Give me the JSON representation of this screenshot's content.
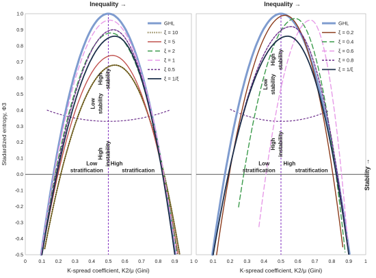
{
  "titles": {
    "left_top": "Inequality →",
    "right_top": "Inequality →",
    "right_side": "Stability →"
  },
  "chart_data": [
    {
      "type": "line",
      "panel": "left",
      "xlabel": "K-spread coefficient, K2/μ (Gini)",
      "ylabel": "Stadardized entropy, Φ3",
      "xlim": [
        0,
        1
      ],
      "ylim": [
        -0.5,
        1.0
      ],
      "xticks": [
        "0",
        "0.1",
        "0.2",
        "0.3",
        "0.4",
        "0.5",
        "0.6",
        "0.7",
        "0.8",
        "0.9",
        "1"
      ],
      "yticks": [
        "-0.5",
        "-0.4",
        "-0.3",
        "-0.2",
        "-0.1",
        "0.0",
        "0.1",
        "0.2",
        "0.3",
        "0.4",
        "0.5",
        "0.6",
        "0.7",
        "0.8",
        "0.9",
        "1.0"
      ],
      "grid": false,
      "legend_position": "top-right",
      "vline_x": 0.5,
      "annotations": [
        {
          "text": "High",
          "x": 0.5,
          "y": 0.62
        },
        {
          "text": "stability",
          "x": 0.5,
          "y": 0.62
        },
        {
          "text": "Low",
          "x": 0.46,
          "y": 0.5
        },
        {
          "text": "stability",
          "x": 0.46,
          "y": 0.5
        },
        {
          "text": "High",
          "x": 0.46,
          "y": 0.12
        },
        {
          "text": "instability",
          "x": 0.46,
          "y": 0.12
        },
        {
          "text": "Low",
          "x": 0.37,
          "y": 0.04
        },
        {
          "text": "stratification",
          "x": 0.37,
          "y": 0.04
        },
        {
          "text": "High",
          "x": 0.6,
          "y": 0.04
        },
        {
          "text": "stratification",
          "x": 0.6,
          "y": 0.04
        }
      ],
      "series": [
        {
          "name": "GHL",
          "color": "#7f9ccf",
          "dash": "solid",
          "width": 3,
          "peak": 1.0,
          "a": 0.095,
          "b": 0.905,
          "skew": 0
        },
        {
          "name": "ξ = 10",
          "color": "#6b5a1a",
          "dash": "dot",
          "width": 2,
          "peak": 0.68,
          "a": 0.11,
          "b": 0.93,
          "skew": 0.02
        },
        {
          "name": "ξ = 5",
          "color": "#c0504d",
          "dash": "solid",
          "width": 1.4,
          "peak": 0.74,
          "a": 0.1,
          "b": 0.92,
          "skew": 0.015
        },
        {
          "name": "ξ = 2",
          "color": "#3a9a4a",
          "dash": "longdash",
          "width": 1.4,
          "peak": 0.88,
          "a": 0.095,
          "b": 0.915,
          "skew": 0.01
        },
        {
          "name": "ξ = 1",
          "color": "#e79ae8",
          "dash": "longdash",
          "width": 1.4,
          "peak": 0.96,
          "a": 0.095,
          "b": 0.91,
          "skew": 0.005
        },
        {
          "name": "ξ 0.5",
          "color": "#6a2c8a",
          "dash": "shortdash",
          "width": 1.4,
          "peak": 0.9,
          "a": 0.1,
          "b": 0.9,
          "skew": 0.03
        },
        {
          "name": "ξ = 1/ξ",
          "color": "#1c2f4a",
          "dash": "solid",
          "width": 1.8,
          "peak": 0.86,
          "a": 0.1,
          "b": 0.9,
          "skew": 0.04
        }
      ],
      "mirror_curve": {
        "color": "#6a2c8a",
        "dash": "shortdash",
        "x_from": 0.13,
        "x_to": 0.87,
        "y_center": 0.33,
        "y_edge": 0.4
      }
    },
    {
      "type": "line",
      "panel": "right",
      "xlabel": "K-spread coefficient, K2/μ (Gini)",
      "ylabel": "",
      "xlim": [
        0,
        1
      ],
      "ylim": [
        -0.5,
        1.0
      ],
      "xticks": [
        "0",
        "0.1",
        "0.2",
        "0.3",
        "0.4",
        "0.5",
        "0.6",
        "0.7",
        "0.8",
        "0.9",
        "1"
      ],
      "grid": false,
      "legend_position": "top-right",
      "vline_x": 0.5,
      "annotations": [
        {
          "text": "High",
          "x": 0.5,
          "y": 0.74
        },
        {
          "text": "stability",
          "x": 0.5,
          "y": 0.74
        },
        {
          "text": "Low",
          "x": 0.46,
          "y": 0.62
        },
        {
          "text": "stability",
          "x": 0.46,
          "y": 0.62
        },
        {
          "text": "High",
          "x": 0.46,
          "y": 0.18
        },
        {
          "text": "instability",
          "x": 0.46,
          "y": 0.18
        },
        {
          "text": "Low",
          "x": 0.37,
          "y": 0.04
        },
        {
          "text": "stratification",
          "x": 0.37,
          "y": 0.04
        },
        {
          "text": "High",
          "x": 0.6,
          "y": 0.04
        },
        {
          "text": "stratification",
          "x": 0.6,
          "y": 0.04
        }
      ],
      "series": [
        {
          "name": "GHL",
          "color": "#7f9ccf",
          "dash": "solid",
          "width": 3,
          "peak": 1.0,
          "a": 0.095,
          "b": 0.905,
          "skew": 0
        },
        {
          "name": "ξ = 0.2",
          "color": "#8b3a1a",
          "dash": "solid",
          "width": 1.4,
          "peak": 0.99,
          "a": 0.12,
          "b": 0.87,
          "skew": 0.03,
          "x_start": 0.12
        },
        {
          "name": "ξ = 0.4",
          "color": "#3a9a4a",
          "dash": "longdash",
          "width": 1.4,
          "peak": 0.97,
          "a": 0.21,
          "b": 0.88,
          "skew": 0.04,
          "x_start": 0.25
        },
        {
          "name": "ξ = 0.6",
          "color": "#e79ae8",
          "dash": "longdash",
          "width": 1.4,
          "peak": 0.96,
          "a": 0.35,
          "b": 0.9,
          "skew": 0.05,
          "x_start": 0.37
        },
        {
          "name": "ξ = 0.8",
          "color": "#6a2c8a",
          "dash": "shortdash",
          "width": 1.4,
          "peak": 0.92,
          "a": 0.1,
          "b": 0.9,
          "skew": 0.06
        },
        {
          "name": "ξ = 1/ξ",
          "color": "#1c2f4a",
          "dash": "solid",
          "width": 1.8,
          "peak": 0.86,
          "a": 0.1,
          "b": 0.9,
          "skew": 0.04
        }
      ],
      "mirror_curve": {
        "color": "#6a2c8a",
        "dash": "shortdash",
        "x_from": 0.2,
        "x_to": 0.78,
        "y_center": 0.33,
        "y_edge": 0.4
      }
    }
  ]
}
